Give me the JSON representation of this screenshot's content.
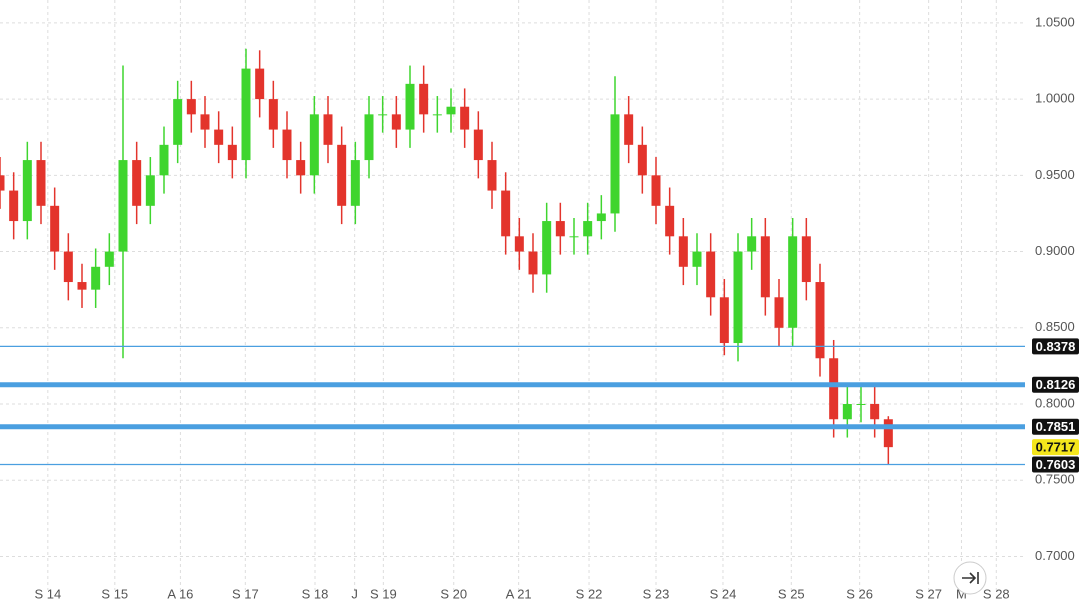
{
  "chart_data": {
    "type": "candlestick",
    "x": [
      2013.3,
      2013.5,
      2013.7,
      2013.9,
      2014.1,
      2014.3,
      2014.5,
      2014.7,
      2014.9,
      2015.1,
      2015.3,
      2015.5,
      2015.7,
      2015.9,
      2016.1,
      2016.3,
      2016.5,
      2016.7,
      2016.9,
      2017.1,
      2017.3,
      2017.5,
      2017.7,
      2017.9,
      2018.1,
      2018.3,
      2018.5,
      2018.7,
      2018.9,
      2019.1,
      2019.3,
      2019.5,
      2019.7,
      2019.9,
      2020.1,
      2020.3,
      2020.5,
      2020.7,
      2020.9,
      2021.1,
      2021.3,
      2021.5,
      2021.7,
      2021.9,
      2022.1,
      2022.3,
      2022.5,
      2022.7,
      2022.9,
      2023.1,
      2023.3,
      2023.5,
      2023.7,
      2023.9,
      2024.1,
      2024.3,
      2024.5,
      2024.7,
      2024.9,
      2025.1,
      2025.3,
      2025.5,
      2025.7,
      2025.9,
      2026.1,
      2026.3
    ],
    "open": [
      0.95,
      0.94,
      0.92,
      0.96,
      0.93,
      0.9,
      0.88,
      0.875,
      0.89,
      0.9,
      0.96,
      0.93,
      0.95,
      0.97,
      1.0,
      0.99,
      0.98,
      0.97,
      0.96,
      1.02,
      1.0,
      0.98,
      0.96,
      0.95,
      0.99,
      0.97,
      0.93,
      0.96,
      0.99,
      0.99,
      0.98,
      1.01,
      0.99,
      0.99,
      0.995,
      0.98,
      0.96,
      0.94,
      0.91,
      0.9,
      0.885,
      0.92,
      0.91,
      0.91,
      0.92,
      0.925,
      0.99,
      0.97,
      0.95,
      0.93,
      0.91,
      0.89,
      0.9,
      0.87,
      0.84,
      0.9,
      0.91,
      0.87,
      0.85,
      0.91,
      0.88,
      0.83,
      0.79,
      0.8,
      0.8,
      0.79
    ],
    "high": [
      0.962,
      0.952,
      0.972,
      0.972,
      0.942,
      0.912,
      0.892,
      0.902,
      0.912,
      1.022,
      0.972,
      0.962,
      0.982,
      1.012,
      1.012,
      1.002,
      0.992,
      0.982,
      1.033,
      1.032,
      1.012,
      0.992,
      0.972,
      1.002,
      1.002,
      0.982,
      0.972,
      1.002,
      1.002,
      1.002,
      1.022,
      1.022,
      1.002,
      1.007,
      1.007,
      0.992,
      0.972,
      0.952,
      0.922,
      0.912,
      0.932,
      0.932,
      0.922,
      0.932,
      0.937,
      1.015,
      1.002,
      0.982,
      0.962,
      0.942,
      0.922,
      0.912,
      0.912,
      0.882,
      0.912,
      0.922,
      0.922,
      0.882,
      0.922,
      0.922,
      0.892,
      0.842,
      0.812,
      0.812,
      0.812,
      0.792
    ],
    "low": [
      0.928,
      0.908,
      0.908,
      0.918,
      0.888,
      0.868,
      0.863,
      0.863,
      0.878,
      0.83,
      0.918,
      0.918,
      0.938,
      0.958,
      0.978,
      0.968,
      0.958,
      0.948,
      0.948,
      0.988,
      0.968,
      0.948,
      0.938,
      0.938,
      0.958,
      0.918,
      0.918,
      0.948,
      0.978,
      0.968,
      0.968,
      0.978,
      0.978,
      0.978,
      0.968,
      0.948,
      0.928,
      0.898,
      0.888,
      0.873,
      0.873,
      0.898,
      0.898,
      0.898,
      0.908,
      0.913,
      0.958,
      0.938,
      0.918,
      0.898,
      0.878,
      0.878,
      0.858,
      0.832,
      0.828,
      0.888,
      0.858,
      0.838,
      0.838,
      0.868,
      0.818,
      0.778,
      0.778,
      0.788,
      0.778,
      0.7603
    ],
    "close": [
      0.94,
      0.92,
      0.96,
      0.93,
      0.9,
      0.88,
      0.875,
      0.89,
      0.9,
      0.96,
      0.93,
      0.95,
      0.97,
      1.0,
      0.99,
      0.98,
      0.97,
      0.96,
      1.02,
      1.0,
      0.98,
      0.96,
      0.95,
      0.99,
      0.97,
      0.93,
      0.96,
      0.99,
      0.99,
      0.98,
      1.01,
      0.99,
      0.99,
      0.995,
      0.98,
      0.96,
      0.94,
      0.91,
      0.9,
      0.885,
      0.92,
      0.91,
      0.91,
      0.92,
      0.925,
      0.99,
      0.97,
      0.95,
      0.93,
      0.91,
      0.89,
      0.9,
      0.87,
      0.84,
      0.9,
      0.91,
      0.87,
      0.85,
      0.91,
      0.88,
      0.83,
      0.79,
      0.8,
      0.8,
      0.79,
      0.7717
    ],
    "up_color": "#3fd52e",
    "down_color": "#e3342c",
    "levels": [
      {
        "value": 0.8378,
        "weight": "thin"
      },
      {
        "value": 0.8126,
        "weight": "thick"
      },
      {
        "value": 0.7851,
        "weight": "thick"
      },
      {
        "value": 0.7603,
        "weight": "thin"
      }
    ],
    "level_color": "#4a9fe0",
    "xlim": [
      2013.3,
      2028.3
    ],
    "ylim": [
      0.678,
      1.065
    ],
    "yticks": [
      {
        "value": 0.7,
        "label": "0.7000"
      },
      {
        "value": 0.75,
        "label": "0.7500"
      },
      {
        "value": 0.8,
        "label": "0.8000"
      },
      {
        "value": 0.85,
        "label": "0.8500"
      },
      {
        "value": 0.9,
        "label": "0.9000"
      },
      {
        "value": 0.95,
        "label": "0.9500"
      },
      {
        "value": 1.0,
        "label": "1.0000"
      },
      {
        "value": 1.05,
        "label": "1.0500"
      }
    ],
    "xticks": [
      {
        "value": 2014.0,
        "label": "S 14"
      },
      {
        "value": 2014.98,
        "label": "S 15"
      },
      {
        "value": 2015.94,
        "label": "A 16"
      },
      {
        "value": 2016.89,
        "label": "S 17"
      },
      {
        "value": 2017.91,
        "label": "S 18"
      },
      {
        "value": 2018.49,
        "label": "J"
      },
      {
        "value": 2018.91,
        "label": "S 19"
      },
      {
        "value": 2019.94,
        "label": "S 20"
      },
      {
        "value": 2020.89,
        "label": "A 21"
      },
      {
        "value": 2021.92,
        "label": "S 22"
      },
      {
        "value": 2022.9,
        "label": "S 23"
      },
      {
        "value": 2023.88,
        "label": "S 24"
      },
      {
        "value": 2024.88,
        "label": "S 25"
      },
      {
        "value": 2025.88,
        "label": "S 26"
      },
      {
        "value": 2026.89,
        "label": "S 27"
      },
      {
        "value": 2027.37,
        "label": "M"
      },
      {
        "value": 2027.88,
        "label": "S 28"
      }
    ],
    "grid": true
  }
}
